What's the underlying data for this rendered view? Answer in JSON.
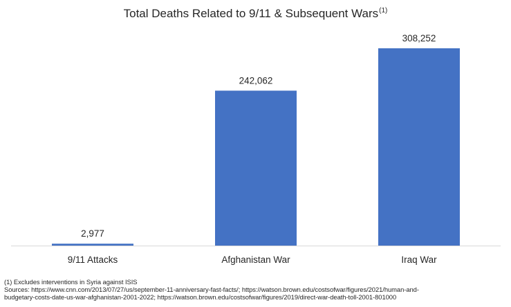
{
  "chart_data": {
    "type": "bar",
    "title": "Total Deaths Related to 9/11 & Subsequent Wars",
    "title_superscript": "(1)",
    "categories": [
      "9/11 Attacks",
      "Afghanistan War",
      "Iraq War"
    ],
    "values": [
      2977,
      242062,
      308252
    ],
    "data_labels": [
      "2,977",
      "242,062",
      "308,252"
    ],
    "xlabel": "",
    "ylabel": "",
    "ylim": [
      0,
      308252
    ],
    "grid": false,
    "legend": "none",
    "bar_color": "#4472C4",
    "axis_color": "#D9D9D9"
  },
  "footnotes": {
    "note": "(1) Excludes interventions in Syria against ISIS",
    "sources_line1": "Sources: https://www.cnn.com/2013/07/27/us/september-11-anniversary-fast-facts/; https://watson.brown.edu/costsofwar/figures/2021/human-and-",
    "sources_line2": "budgetary-costs-date-us-war-afghanistan-2001-2022; https://watson.brown.edu/costsofwar/figures/2019/direct-war-death-toll-2001-801000"
  }
}
